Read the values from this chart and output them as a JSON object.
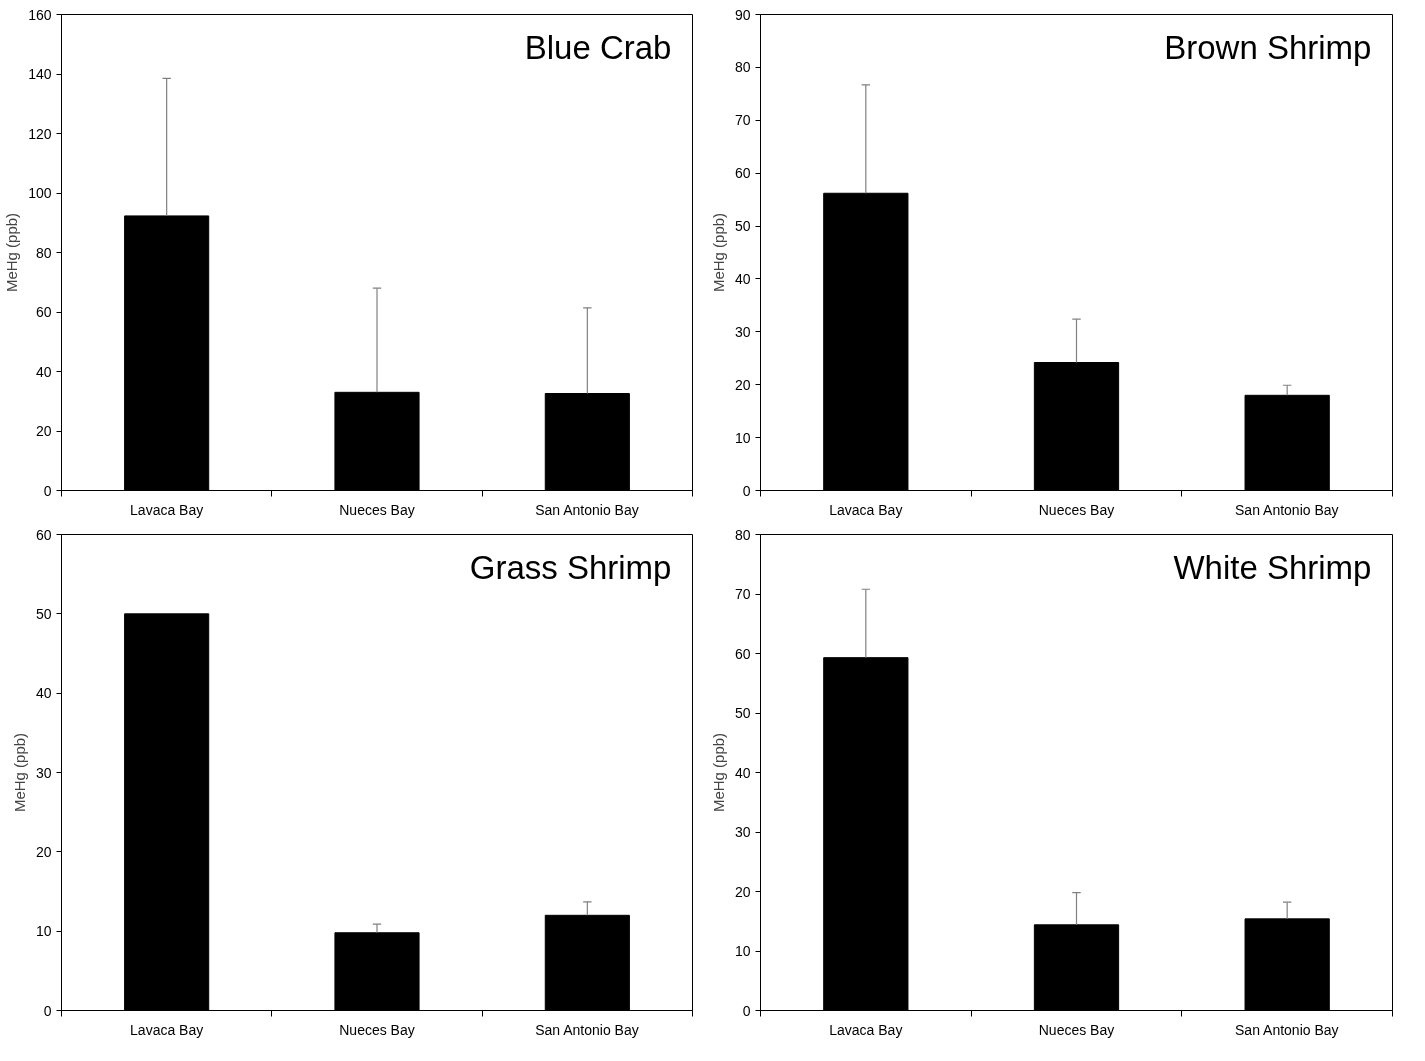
{
  "chart_data": [
    {
      "type": "bar",
      "title": "Blue Crab",
      "ylabel": "MeHg (ppb)",
      "categories": [
        "Lavaca Bay",
        "Nueces Bay",
        "San Antonio Bay"
      ],
      "values": [
        92.3,
        33,
        32.6
      ],
      "color": "#000000",
      "errors": [
        [
          92.3,
          138.5
        ],
        [
          33,
          68
        ],
        [
          32.6,
          61.4
        ]
      ],
      "ylim": [
        0,
        160
      ],
      "yticks": [
        0,
        20,
        40,
        60,
        80,
        100,
        120,
        140,
        160
      ],
      "grid": false
    },
    {
      "type": "bar",
      "title": "Brown Shrimp",
      "ylabel": "MeHg (ppb)",
      "categories": [
        "Lavaca Bay",
        "Nueces Bay",
        "San Antonio Bay"
      ],
      "values": [
        56.2,
        24.2,
        18
      ],
      "color": "#000000",
      "errors": [
        [
          56.2,
          76.7
        ],
        [
          24.2,
          32.4
        ],
        [
          18,
          19.9
        ]
      ],
      "ylim": [
        0,
        90
      ],
      "yticks": [
        0,
        10,
        20,
        30,
        40,
        50,
        60,
        70,
        80,
        90
      ],
      "grid": false
    },
    {
      "type": "bar",
      "title": "Grass Shrimp",
      "ylabel": "MeHg (ppb)",
      "categories": [
        "Lavaca Bay",
        "Nueces Bay",
        "San Antonio Bay"
      ],
      "values": [
        50,
        9.8,
        12
      ],
      "color": "#000000",
      "errors": [
        null,
        [
          9.8,
          10.9
        ],
        [
          12,
          13.7
        ]
      ],
      "ylim": [
        0,
        60
      ],
      "yticks": [
        0,
        10,
        20,
        30,
        40,
        50,
        60
      ],
      "grid": false
    },
    {
      "type": "bar",
      "title": "White Shrimp",
      "ylabel": "MeHg (ppb)",
      "categories": [
        "Lavaca Bay",
        "Nueces Bay",
        "San Antonio Bay"
      ],
      "values": [
        59.3,
        14.4,
        15.4
      ],
      "color": "#000000",
      "errors": [
        [
          59.3,
          70.8
        ],
        [
          14.4,
          19.8
        ],
        [
          15.4,
          18.2
        ]
      ],
      "ylim": [
        0,
        80
      ],
      "yticks": [
        0,
        10,
        20,
        30,
        40,
        50,
        60,
        70,
        80
      ],
      "grid": false
    }
  ]
}
